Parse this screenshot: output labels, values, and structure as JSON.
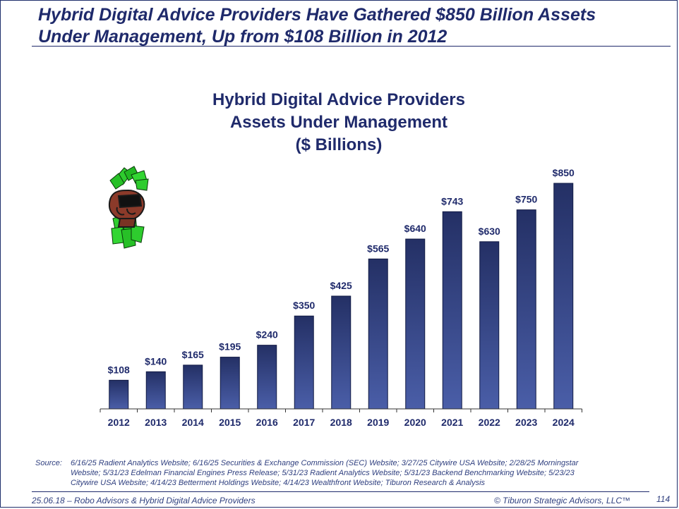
{
  "headline": {
    "line1": "Hybrid Digital Advice Providers Have Gathered $850 Billion Assets",
    "line2": "Under Management, Up from $108 Billion in 2012"
  },
  "chart_data": {
    "type": "bar",
    "title_lines": [
      "Hybrid Digital Advice Providers",
      "Assets Under Management",
      "($ Billions)"
    ],
    "categories": [
      "2012",
      "2013",
      "2014",
      "2015",
      "2016",
      "2017",
      "2018",
      "2019",
      "2020",
      "2021",
      "2022",
      "2023",
      "2024"
    ],
    "values": [
      108,
      140,
      165,
      195,
      240,
      350,
      425,
      565,
      640,
      743,
      630,
      750,
      850
    ],
    "data_labels": [
      "$108",
      "$140",
      "$165",
      "$195",
      "$240",
      "$350",
      "$425",
      "$565",
      "$640",
      "$743",
      "$630",
      "$750",
      "$850"
    ],
    "xlabel": "",
    "ylabel": "",
    "ylim": [
      0,
      850
    ],
    "grid": false,
    "legend": "none",
    "bar_color_top": "#243065",
    "bar_color_bottom": "#4a5ea8",
    "text_color": "#1f2a6b"
  },
  "icon": "money-fist-icon",
  "source": {
    "label": "Source:",
    "line1": "6/16/25 Radient Analytics Website; 6/16/25 Securities & Exchange Commission (SEC) Website; 3/27/25 Citywire USA Website; 2/28/25 Morningstar",
    "line2": "Website;  5/31/23 Edelman Financial Engines Press Release; 5/31/23 Radient Analytics Website; 5/31/23 Backend Benchmarking Website;  5/23/23",
    "line3": "Citywire USA Website; 4/14/23 Betterment Holdings Website; 4/14/23 Wealthfront Website; Tiburon Research & Analysis"
  },
  "footer": {
    "left": "25.06.18 – Robo Advisors & Hybrid Digital Advice Providers",
    "right": "© Tiburon Strategic Advisors, LLC™",
    "page": "114"
  }
}
